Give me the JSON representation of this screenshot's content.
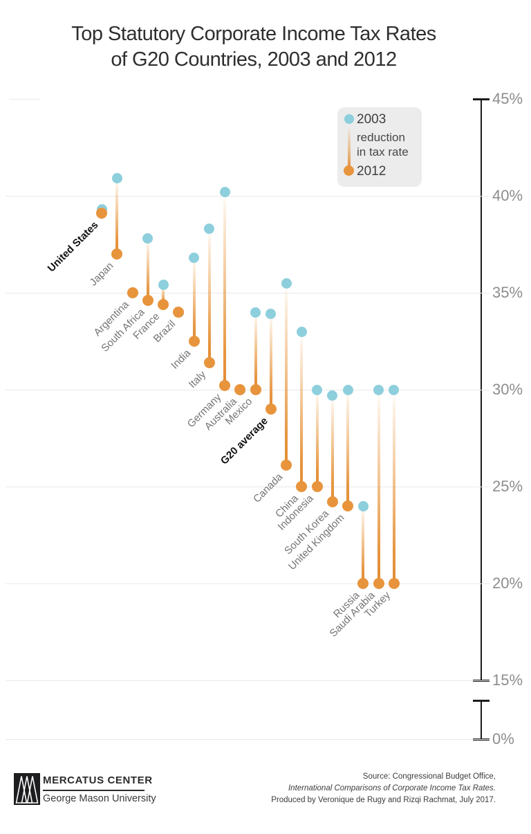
{
  "title": {
    "line1": "Top Statutory Corporate Income Tax Rates",
    "line2": "of G20 Countries, 2003 and 2012"
  },
  "legend": {
    "label_2003": "2003",
    "reduction_line1": "reduction",
    "reduction_line2": "in tax rate",
    "label_2012": "2012"
  },
  "chart_data": {
    "type": "dumbbell",
    "title": "Top Statutory Corporate Income Tax Rates of G20 Countries, 2003 and 2012",
    "unit": "%",
    "categories": [
      "United States",
      "Japan",
      "Argentina",
      "South Africa",
      "France",
      "Brazil",
      "India",
      "Italy",
      "Germany",
      "Australia",
      "Mexico",
      "G20 average",
      "Canada",
      "China",
      "Indonesia",
      "South Korea",
      "United Kingdom",
      "Russia",
      "Saudi Arabia",
      "Turkey"
    ],
    "series": [
      {
        "name": "2003",
        "color": "#8dcfdc",
        "values": [
          39.3,
          40.9,
          35.0,
          37.8,
          35.4,
          34.0,
          36.8,
          38.3,
          40.2,
          30.0,
          34.0,
          33.9,
          35.5,
          33.0,
          30.0,
          29.7,
          30.0,
          24.0,
          30.0,
          30.0
        ]
      },
      {
        "name": "2012",
        "color": "#e8943c",
        "values": [
          39.1,
          37.0,
          35.0,
          34.6,
          34.4,
          34.0,
          32.5,
          31.4,
          30.2,
          30.0,
          30.0,
          29.0,
          26.1,
          25.0,
          25.0,
          24.2,
          24.0,
          20.0,
          20.0,
          20.0
        ]
      }
    ],
    "emphasized_categories": [
      "United States",
      "G20 average"
    ],
    "y_axis": {
      "ticks_upper": [
        45,
        40,
        35,
        30,
        25,
        20,
        15
      ],
      "tick_zero": 0,
      "tick_suffix": "%",
      "axis_break": true,
      "range_upper": [
        15,
        45
      ]
    },
    "grid": true,
    "legend_position": "top-right",
    "colors": {
      "grid": "#e9e9e9",
      "axis": "#1b1b1b",
      "tick_text": "#8d8d8d"
    }
  },
  "footer": {
    "logo_name": "MERCATUS CENTER",
    "logo_sub": "George Mason University",
    "source_line1": "Source: Congressional Budget Office,",
    "source_line2": "International Comparisons of Corporate Income Tax Rates.",
    "source_line3": "Produced by Veronique de Rugy and Rizqi Rachmat, July 2017."
  }
}
